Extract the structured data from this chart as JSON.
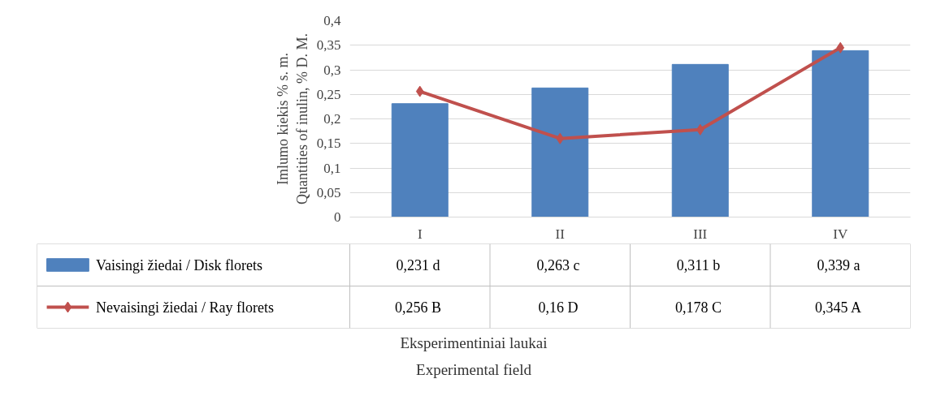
{
  "chart_data": {
    "type": "bar",
    "categories": [
      "I",
      "II",
      "III",
      "IV"
    ],
    "ylabel": "Imlumo kiekis % s. m.\nQuantities of inulin, % D. M.",
    "annotations": [
      "Eksperimentiniai laukai",
      "Experimental field"
    ],
    "series": [
      {
        "name": "Vaisingi žiedai / Disk florets",
        "type": "bar",
        "color": "#4f81bd",
        "values": [
          0.231,
          0.263,
          0.311,
          0.339
        ],
        "value_labels": [
          "0,231  d",
          "0,263  c",
          "0,311  b",
          "0,339  a"
        ]
      },
      {
        "name": "Nevaisingi žiedai / Ray florets",
        "type": "line",
        "color": "#c0504d",
        "values": [
          0.256,
          0.16,
          0.178,
          0.345
        ],
        "value_labels": [
          "0,256  B",
          "0,16  D",
          "0,178  C",
          "0,345  A"
        ]
      }
    ],
    "ylim": [
      0,
      0.4
    ],
    "yticks": [
      0,
      {
        "value": 0.05,
        "label": "0,05"
      },
      {
        "value": 0.1,
        "label": "0,1"
      },
      {
        "value": 0.15,
        "label": "0,15"
      },
      {
        "value": 0.2,
        "label": "0,2"
      },
      {
        "value": 0.25,
        "label": "0,25"
      },
      {
        "value": 0.3,
        "label": "0,3"
      },
      {
        "value": 0.35,
        "label": "0,35"
      },
      {
        "value": 0.4,
        "label": "0,4"
      }
    ],
    "grid": "y",
    "legend": "bottom",
    "marker": "diamond",
    "line_style": "solid"
  }
}
